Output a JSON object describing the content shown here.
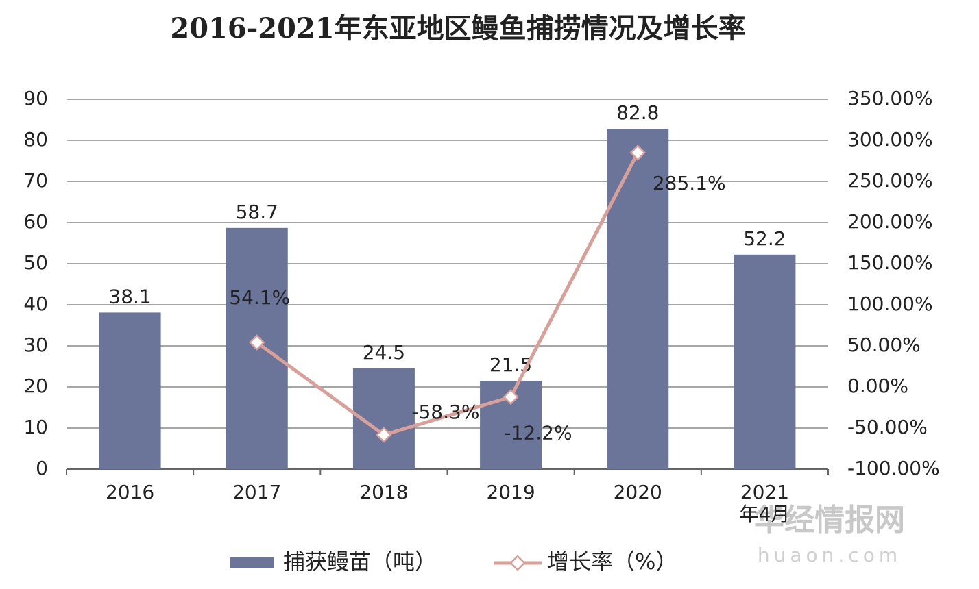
{
  "chart_data": {
    "type": "bar-line",
    "title": "2016-2021年东亚地区鳗鱼捕捞情况及增长率",
    "categories": [
      "2016",
      "2017",
      "2018",
      "2019",
      "2020",
      "2021年4月"
    ],
    "series": [
      {
        "name": "捕获鳗苗（吨）",
        "type": "bar",
        "color": "#6b7499",
        "values": [
          38.1,
          58.7,
          24.5,
          21.5,
          82.8,
          52.2
        ]
      },
      {
        "name": "增长率（%）",
        "type": "line",
        "axis": "y2",
        "color": "#d9a09a",
        "values": [
          null,
          54.1,
          -58.3,
          -12.2,
          285.1,
          null
        ],
        "value_labels": [
          null,
          "54.1%",
          "-58.3%",
          "-12.2%",
          "285.1%",
          null
        ]
      }
    ],
    "ylim": [
      0,
      90
    ],
    "yticks": [
      0,
      10,
      20,
      30,
      40,
      50,
      60,
      70,
      80,
      90
    ],
    "y2lim": [
      -100,
      350
    ],
    "y2ticks": [
      {
        "value": -100,
        "label": "-100.00%"
      },
      {
        "value": -50,
        "label": "-50.00%"
      },
      {
        "value": 0,
        "label": "0.00%"
      },
      {
        "value": 50,
        "label": "50.00%"
      },
      {
        "value": 100,
        "label": "100.00%"
      },
      {
        "value": 150,
        "label": "150.00%"
      },
      {
        "value": 200,
        "label": "200.00%"
      },
      {
        "value": 250,
        "label": "250.00%"
      },
      {
        "value": 300,
        "label": "300.00%"
      },
      {
        "value": 350,
        "label": "350.00%"
      }
    ],
    "grid": true,
    "legend": "bottom",
    "watermark": [
      "华经情报网",
      "huaon.com"
    ]
  }
}
